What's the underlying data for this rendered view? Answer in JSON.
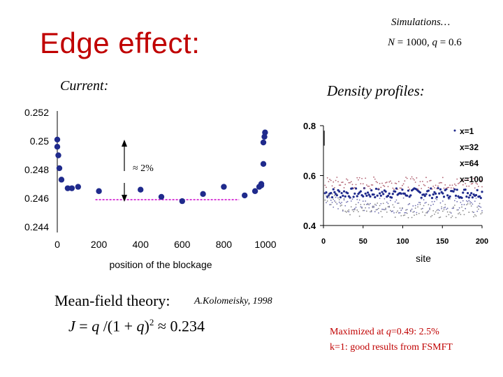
{
  "slide": {
    "title": "Edge effect:",
    "simulations_label": "Simulations…",
    "params": {
      "n_label": "N",
      "n_value": "= 1000,",
      "q_label": "q",
      "q_value": "= 0.6"
    },
    "current_label": "Current:",
    "density_label": "Density profiles:",
    "mean_field_label": "Mean-field theory:",
    "citation": "A.Kolomeisky, 1998",
    "formula": {
      "lhs": "J",
      "eq": " = ",
      "q": "q",
      "mid": " /(1 + ",
      "q2": "q",
      "close": ")",
      "exp": "2",
      "rhs": " ≈ 0.234"
    },
    "note_line1": {
      "pre": "Maximized at ",
      "q": "q",
      "post": "=0.49: 2.5%"
    },
    "note_line2": "k=1: good results from FSMFT",
    "colors": {
      "title": "#c00000",
      "points": "#1f2a8c",
      "dashed_line": "#cc00cc",
      "note": "#c00000"
    }
  },
  "chart_data": [
    {
      "type": "scatter",
      "title": "",
      "xlabel": "position of the blockage",
      "ylabel": "",
      "xlim": [
        0,
        1000
      ],
      "ylim": [
        0.244,
        0.252
      ],
      "x_ticks": [
        "0",
        "200",
        "400",
        "600",
        "800",
        "1000"
      ],
      "y_ticks": [
        "0.252",
        "0.25",
        "0.248",
        "0.246",
        "0.244"
      ],
      "annotation": "≈ 2%",
      "reference_line": {
        "y": 0.2459,
        "x_from": 200,
        "x_to": 900,
        "style": "dashed"
      },
      "series": [
        {
          "values": [
            [
              0,
              0.2501
            ],
            [
              0,
              0.2496
            ],
            [
              5,
              0.249
            ],
            [
              10,
              0.2481
            ],
            [
              20,
              0.2473
            ],
            [
              50,
              0.2467
            ],
            [
              70,
              0.2467
            ],
            [
              100,
              0.2468
            ],
            [
              200,
              0.2465
            ],
            [
              400,
              0.2466
            ],
            [
              500,
              0.2461
            ],
            [
              600,
              0.2458
            ],
            [
              700,
              0.2463
            ],
            [
              800,
              0.2468
            ],
            [
              900,
              0.2462
            ],
            [
              950,
              0.2465
            ],
            [
              970,
              0.2468
            ],
            [
              980,
              0.247
            ],
            [
              990,
              0.2484
            ],
            [
              990,
              0.2499
            ],
            [
              995,
              0.2503
            ],
            [
              998,
              0.2506
            ],
            [
              980,
              0.2469
            ]
          ]
        }
      ]
    },
    {
      "type": "scatter",
      "title": "",
      "xlabel": "site",
      "ylabel": "",
      "xlim": [
        0,
        200
      ],
      "ylim": [
        0.4,
        0.8
      ],
      "x_ticks": [
        "0",
        "50",
        "100",
        "150",
        "200"
      ],
      "y_ticks": [
        "0.8",
        "0.6",
        "0.4"
      ],
      "legend_position": "top-right",
      "series": [
        {
          "name": "x=1",
          "description_level": 0.53
        },
        {
          "name": "x=32",
          "description_level": 0.46
        },
        {
          "name": "x=64",
          "description_level": 0.57
        },
        {
          "name": "x=100",
          "description_level": 0.48
        }
      ]
    }
  ]
}
